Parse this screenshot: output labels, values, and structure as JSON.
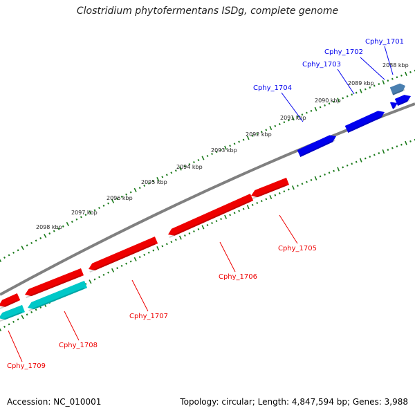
{
  "title": "Clostridium phytofermentans ISDg, complete genome",
  "footer": {
    "accession": "Accession: NC_010001",
    "summary": "Topology: circular; Length: 4,847,594 bp; Genes: 3,988"
  },
  "colors": {
    "forward_gene": "#0000ee",
    "reverse_gene": "#ee0000",
    "reverse_gene_alt": "#00c8c8",
    "pseudo_gene": "#4a7fb0",
    "backbone": "#808080",
    "ticks": "#1a7a1a"
  },
  "ruler": {
    "ticks_kbp": [
      2088,
      2089,
      2090,
      2091,
      2092,
      2093,
      2094,
      2095,
      2096,
      2097,
      2098
    ],
    "tick_labels": [
      "2088 kbp",
      "2089 kbp",
      "2090 kbp",
      "2091 kbp",
      "2092 kbp",
      "2093 kbp",
      "2094 kbp",
      "2095 kbp",
      "2096 kbp",
      "2097 kbp",
      "2098 kbp"
    ]
  },
  "genes": [
    {
      "name": "Cphy_1701",
      "strand": "forward",
      "color": "forward_gene"
    },
    {
      "name": "Cphy_1702",
      "strand": "forward",
      "color": "forward_gene"
    },
    {
      "name": "Cphy_1703",
      "strand": "forward",
      "color": "forward_gene"
    },
    {
      "name": "Cphy_1704",
      "strand": "forward",
      "color": "forward_gene"
    },
    {
      "name": "Cphy_1705",
      "strand": "reverse",
      "color": "reverse_gene"
    },
    {
      "name": "Cphy_1706",
      "strand": "reverse",
      "color": "reverse_gene"
    },
    {
      "name": "Cphy_1707",
      "strand": "reverse",
      "color": "reverse_gene"
    },
    {
      "name": "Cphy_1708",
      "strand": "reverse",
      "color": "reverse_gene_alt"
    },
    {
      "name": "Cphy_1709",
      "strand": "reverse",
      "color": "reverse_gene_alt"
    }
  ]
}
